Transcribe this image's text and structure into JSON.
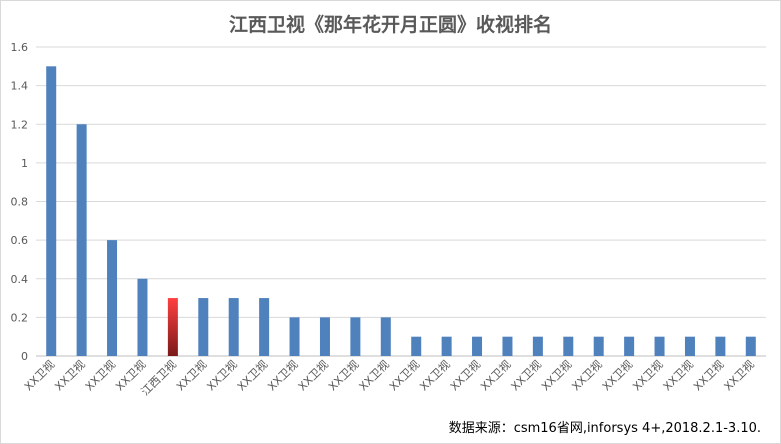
{
  "chart_data": {
    "type": "bar",
    "title": "江西卫视《那年花开月正圆》收视排名",
    "xlabel": "",
    "ylabel": "",
    "ylim": [
      0,
      1.6
    ],
    "yticks": [
      "0",
      "0.2",
      "0.4",
      "0.6",
      "0.8",
      "1",
      "1.2",
      "1.4",
      "1.6"
    ],
    "grid": true,
    "legend": "none",
    "categories": [
      "XX卫视",
      "XX卫视",
      "XX卫视",
      "XX卫视",
      "江西卫视",
      "XX卫视",
      "XX卫视",
      "XX卫视",
      "XX卫视",
      "XX卫视",
      "XX卫视",
      "XX卫视",
      "XX卫视",
      "XX卫视",
      "XX卫视",
      "XX卫视",
      "XX卫视",
      "XX卫视",
      "XX卫视",
      "XX卫视",
      "XX卫视",
      "XX卫视",
      "XX卫视",
      "XX卫视"
    ],
    "values": [
      1.5,
      1.2,
      0.6,
      0.4,
      0.3,
      0.3,
      0.3,
      0.3,
      0.2,
      0.2,
      0.2,
      0.2,
      0.1,
      0.1,
      0.1,
      0.1,
      0.1,
      0.1,
      0.1,
      0.1,
      0.1,
      0.1,
      0.1,
      0.1
    ],
    "highlight_index": 4,
    "colors": {
      "bar": "#4f81bd",
      "highlight_top": "#ff4040",
      "highlight_bottom": "#7a1a1a",
      "grid": "#d9d9d9",
      "axis": "#bfbfbf"
    },
    "source": "数据来源：csm16省网,inforsys 4+,2018.2.1-3.10."
  }
}
